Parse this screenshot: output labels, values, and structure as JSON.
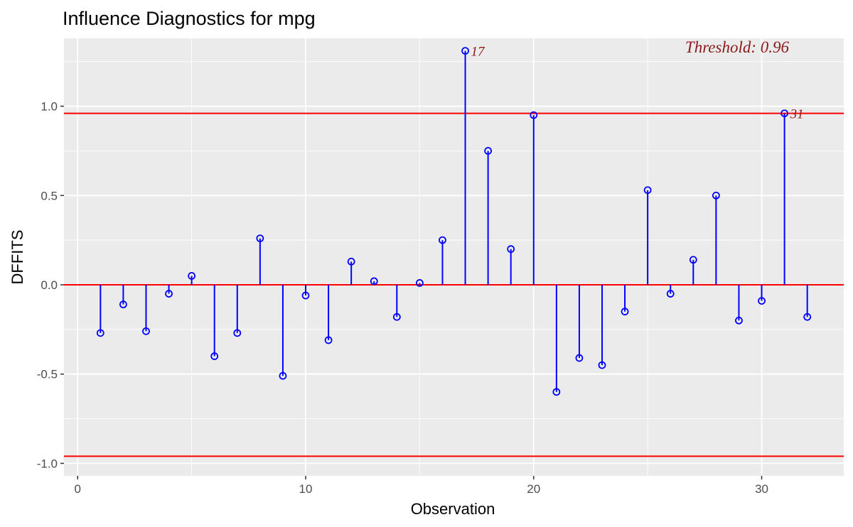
{
  "chart_data": {
    "type": "scatter",
    "subtype": "lollipop",
    "title": "Influence Diagnostics for mpg",
    "xlabel": "Observation",
    "ylabel": "DFFITS",
    "xlim": [
      -0.6,
      33.6
    ],
    "ylim": [
      -1.07,
      1.38
    ],
    "x_ticks": [
      0,
      10,
      20,
      30
    ],
    "x_tick_labels": [
      "0",
      "10",
      "20",
      "30"
    ],
    "y_ticks": [
      -1.0,
      -0.5,
      0.0,
      0.5,
      1.0
    ],
    "y_tick_labels": [
      "-1.0",
      "-0.5",
      "0.0",
      "0.5",
      "1.0"
    ],
    "grid": true,
    "threshold": 0.96,
    "threshold_label": "Threshold: 0.96",
    "x": [
      1,
      2,
      3,
      4,
      5,
      6,
      7,
      8,
      9,
      10,
      11,
      12,
      13,
      14,
      15,
      16,
      17,
      18,
      19,
      20,
      21,
      22,
      23,
      24,
      25,
      26,
      27,
      28,
      29,
      30,
      31,
      32
    ],
    "values": [
      -0.27,
      -0.11,
      -0.26,
      -0.05,
      0.05,
      -0.4,
      -0.27,
      0.26,
      -0.51,
      -0.06,
      -0.31,
      0.13,
      0.02,
      -0.18,
      0.01,
      0.25,
      1.31,
      0.75,
      0.2,
      0.95,
      -0.6,
      -0.41,
      -0.45,
      -0.15,
      0.53,
      -0.05,
      0.14,
      0.5,
      -0.2,
      -0.09,
      0.96,
      -0.18
    ],
    "point_labels": [
      {
        "x": 17,
        "y": 1.31,
        "text": "17"
      },
      {
        "x": 31,
        "y": 0.96,
        "text": "31"
      }
    ],
    "colors": {
      "stem": "#0000ff",
      "point": "#0000ff",
      "threshold_line": "#ff0000",
      "zero_line": "#ff0000",
      "annotation": "#8b1a1a",
      "panel": "#ebebeb",
      "grid": "#ffffff"
    }
  }
}
